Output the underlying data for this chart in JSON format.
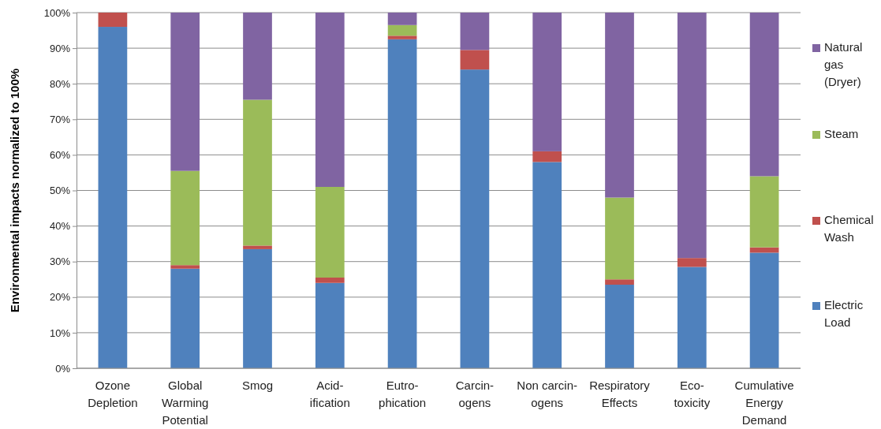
{
  "chart_data": {
    "type": "bar",
    "stacked": true,
    "ylabel": "Environmental impacts normalized to 100%",
    "categories": [
      "Ozone\nDepletion",
      "Global\nWarming\nPotential",
      "Smog",
      "Acid-\nification",
      "Eutro-\nphication",
      "Carcin-\nogens",
      "Non carcin-\nogens",
      "Respiratory\nEffects",
      "Eco-\ntoxicity",
      "Cumulative\nEnergy\nDemand"
    ],
    "series": [
      {
        "name": "Electric Load",
        "color": "#4f81bd",
        "values": [
          96,
          28,
          33.5,
          24,
          92.5,
          84,
          58,
          23.5,
          28.5,
          32.5
        ]
      },
      {
        "name": "Chemical Wash",
        "color": "#c0504d",
        "values": [
          4,
          1,
          1,
          1.5,
          1,
          5.5,
          3,
          1.5,
          2.5,
          1.5
        ]
      },
      {
        "name": "Steam",
        "color": "#9bbb59",
        "values": [
          0,
          26.5,
          41,
          25.5,
          3,
          0,
          0,
          23,
          0,
          20
        ]
      },
      {
        "name": "Natural gas (Dryer)",
        "color": "#8064a2",
        "values": [
          0,
          44.5,
          24.5,
          49,
          3.5,
          10.5,
          39,
          52,
          69,
          46
        ]
      }
    ],
    "ylim": [
      0,
      100
    ],
    "yticks": [
      {
        "value": 0,
        "label": "0%"
      },
      {
        "value": 10,
        "label": "10%"
      },
      {
        "value": 20,
        "label": "20%"
      },
      {
        "value": 30,
        "label": "30%"
      },
      {
        "value": 40,
        "label": "40%"
      },
      {
        "value": 50,
        "label": "50%"
      },
      {
        "value": 60,
        "label": "60%"
      },
      {
        "value": 70,
        "label": "70%"
      },
      {
        "value": 80,
        "label": "80%"
      },
      {
        "value": 90,
        "label": "90%"
      },
      {
        "value": 100,
        "label": "100%"
      }
    ],
    "grid": "y",
    "legend": "right"
  }
}
